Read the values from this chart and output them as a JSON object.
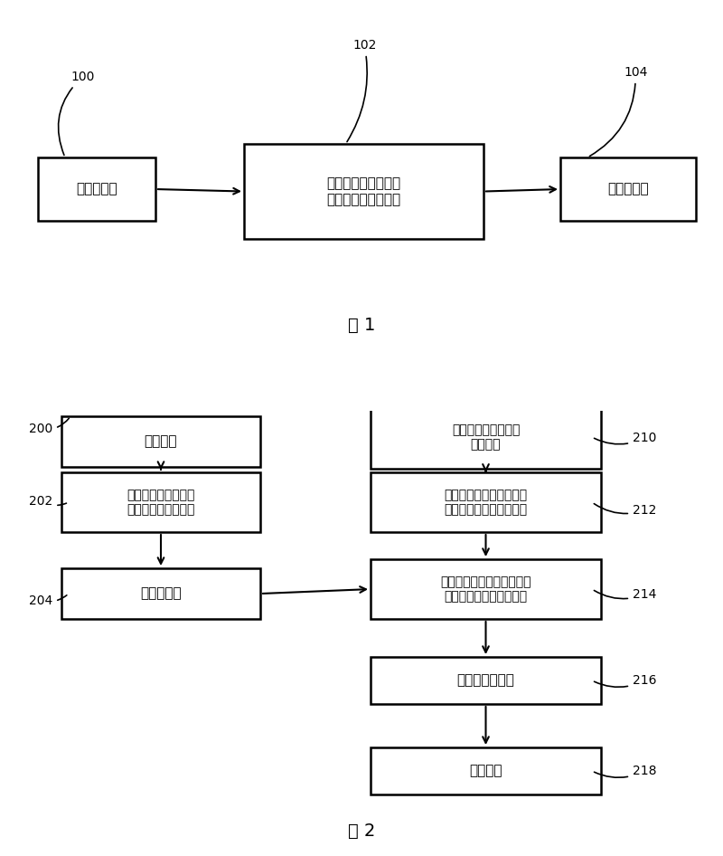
{
  "bg_color": "#ffffff",
  "fig1_caption": "图 1",
  "fig2_caption": "图 2",
  "fig1": {
    "box100": {
      "label": "提供一基材",
      "bold": false
    },
    "box102": {
      "label": "利用噴墨印刷方式将\n除水剂噴涂在基材上",
      "bold": true
    },
    "box104": {
      "label": "固化除水剂",
      "bold": false
    }
  },
  "fig2": {
    "box200": {
      "label": "盖板对准",
      "bold": false
    },
    "box202": {
      "label": "利用噴墨印刷方式将\n除水剂噴涂在盖板上",
      "bold": true
    },
    "box204": {
      "label": "固化除水剂",
      "bold": false
    },
    "box210": {
      "label": "有机电濃发光二极管\n基板对准",
      "bold": false
    },
    "box212": {
      "label": "于有机电濃发光二极管基\n板与盖板之间提供一胶层",
      "bold": true
    },
    "box214": {
      "label": "将有机电濃发光二极管基板\n与具有除水剂的盖板对准",
      "bold": true
    },
    "box216": {
      "label": "压合盖板与基板",
      "bold": false
    },
    "box218": {
      "label": "固化胶胶",
      "bold": false
    }
  }
}
